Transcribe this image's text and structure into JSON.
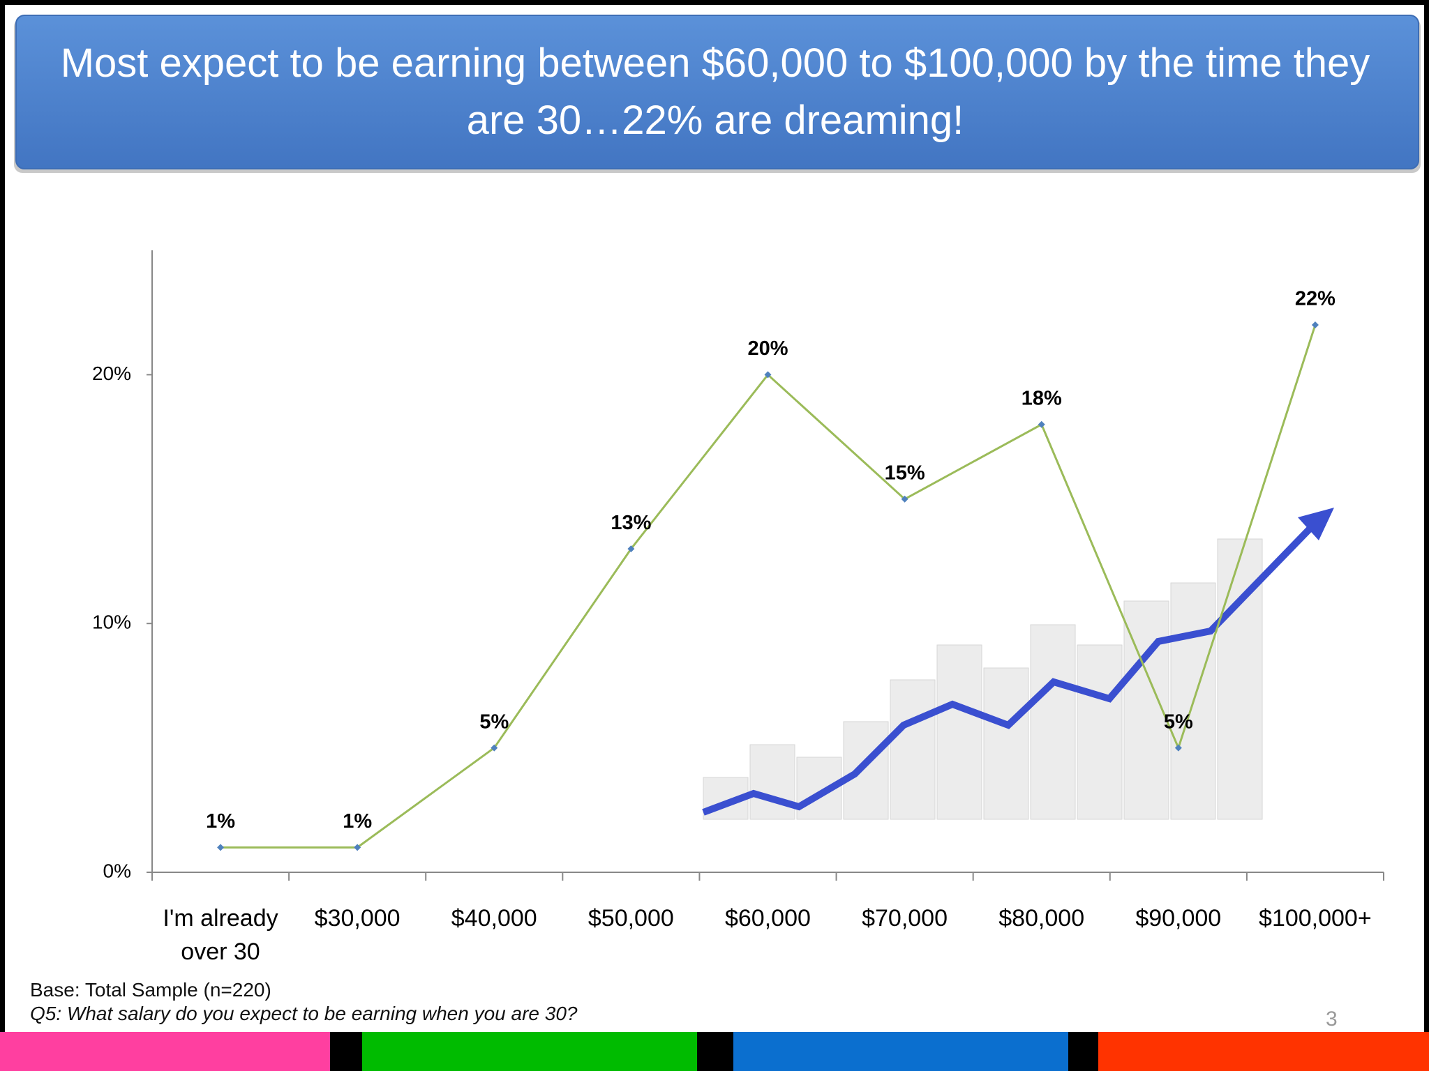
{
  "header": {
    "title": "Most expect to be earning between $60,000 to $100,000 by the time they are 30…22% are dreaming!"
  },
  "chart_data": {
    "type": "line",
    "categories": [
      "I'm already over 30",
      "$30,000",
      "$40,000",
      "$50,000",
      "$60,000",
      "$70,000",
      "$80,000",
      "$90,000",
      "$100,000+"
    ],
    "values": [
      1,
      1,
      5,
      13,
      20,
      15,
      18,
      5,
      22
    ],
    "value_labels": [
      "1%",
      "1%",
      "5%",
      "13%",
      "20%",
      "15%",
      "18%",
      "5%",
      "22%"
    ],
    "color": "#9bbb59",
    "marker_color": "#4f81bd",
    "ylim": [
      0,
      25
    ],
    "yticks": [
      {
        "value": 0,
        "label": "0%"
      },
      {
        "value": 10,
        "label": "10%"
      },
      {
        "value": 20,
        "label": "20%"
      }
    ]
  },
  "footer": {
    "base": "Base: Total Sample (n=220)",
    "question": "Q5: What salary do you expect to be earning when you are 30?",
    "page_number": "3"
  }
}
